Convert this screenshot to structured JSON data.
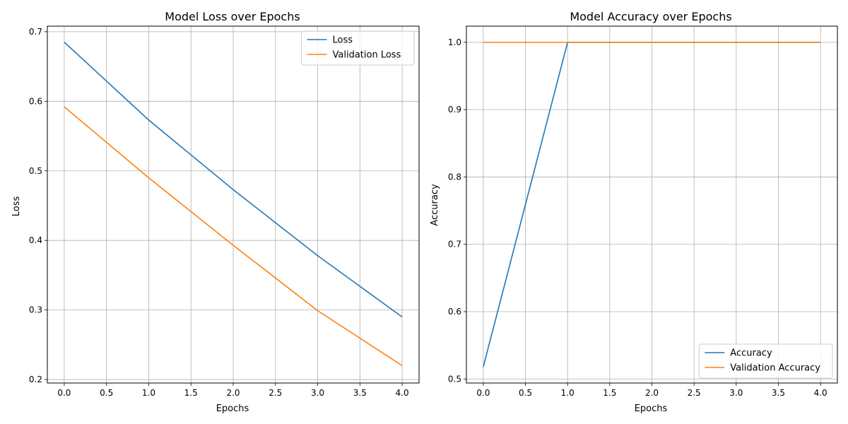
{
  "chart_data": [
    {
      "type": "line",
      "title": "Model Loss over Epochs",
      "xlabel": "Epochs",
      "ylabel": "Loss",
      "x": [
        0,
        1,
        2,
        3,
        4
      ],
      "xlim": [
        -0.2,
        4.2
      ],
      "ylim": [
        0.195,
        0.708
      ],
      "xticks": [
        0.0,
        0.5,
        1.0,
        1.5,
        2.0,
        2.5,
        3.0,
        3.5,
        4.0
      ],
      "xtick_labels": [
        "0.0",
        "0.5",
        "1.0",
        "1.5",
        "2.0",
        "2.5",
        "3.0",
        "3.5",
        "4.0"
      ],
      "yticks": [
        0.2,
        0.3,
        0.4,
        0.5,
        0.6,
        0.7
      ],
      "ytick_labels": [
        "0.2",
        "0.3",
        "0.4",
        "0.5",
        "0.6",
        "0.7"
      ],
      "grid": true,
      "legend_position": "top-right",
      "series": [
        {
          "name": "Loss",
          "values": [
            0.685,
            0.573,
            0.473,
            0.378,
            0.29
          ],
          "color": "#1f77b4"
        },
        {
          "name": "Validation Loss",
          "values": [
            0.592,
            0.49,
            0.393,
            0.299,
            0.22
          ],
          "color": "#ff7f0e"
        }
      ]
    },
    {
      "type": "line",
      "title": "Model Accuracy over Epochs",
      "xlabel": "Epochs",
      "ylabel": "Accuracy",
      "x": [
        0,
        1,
        2,
        3,
        4
      ],
      "xlim": [
        -0.2,
        4.2
      ],
      "ylim": [
        0.494,
        1.024
      ],
      "xticks": [
        0.0,
        0.5,
        1.0,
        1.5,
        2.0,
        2.5,
        3.0,
        3.5,
        4.0
      ],
      "xtick_labels": [
        "0.0",
        "0.5",
        "1.0",
        "1.5",
        "2.0",
        "2.5",
        "3.0",
        "3.5",
        "4.0"
      ],
      "yticks": [
        0.5,
        0.6,
        0.7,
        0.8,
        0.9,
        1.0
      ],
      "ytick_labels": [
        "0.5",
        "0.6",
        "0.7",
        "0.8",
        "0.9",
        "1.0"
      ],
      "grid": true,
      "legend_position": "bottom-right",
      "series": [
        {
          "name": "Accuracy",
          "values": [
            0.518,
            1.0,
            1.0,
            1.0,
            1.0
          ],
          "color": "#1f77b4"
        },
        {
          "name": "Validation Accuracy",
          "values": [
            1.0,
            1.0,
            1.0,
            1.0,
            1.0
          ],
          "color": "#ff7f0e"
        }
      ]
    }
  ]
}
